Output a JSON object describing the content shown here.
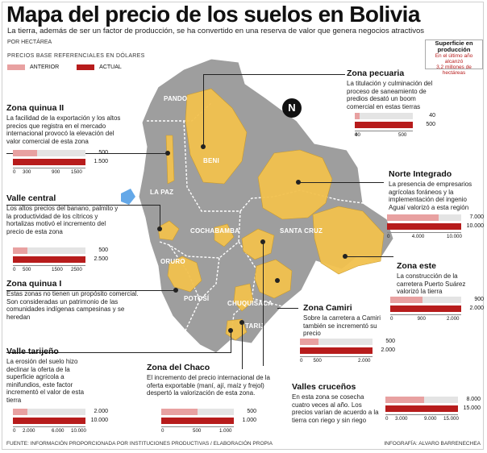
{
  "header": {
    "title": "Mapa del precio de los suelos en Bolivia",
    "subtitle": "La tierra, además de ser un factor de producción, se ha convertido en una reserva de valor que genera negocios atractivos",
    "unit": "POR HECTÁREA",
    "prices_note": "PRECIOS  BASE  REFERENCIALES EN DÓLARES"
  },
  "legend": {
    "anterior": "ANTERIOR",
    "actual": "ACTUAL"
  },
  "colors": {
    "anterior": "#e8a1a1",
    "actual": "#b71c1c",
    "zone": "#f2c14e",
    "land": "#9e9e9e",
    "bg_bar": "#e4e4e4"
  },
  "surface": {
    "title1": "Superficie en",
    "title2": "producción",
    "line1": "En el último año alcanzó",
    "line2": "3,2 millones de hectáreas"
  },
  "map_labels": {
    "pando": "PANDO",
    "beni": "BENI",
    "la_paz": "LA PAZ",
    "cochabamba": "COCHABAMBA",
    "santa_cruz": "SANTA CRUZ",
    "oruro": "ORURO",
    "potosi": "POTOSÍ",
    "chuquisaca": "CHUQUISACA",
    "tarija": "TARIJA",
    "compass": "N"
  },
  "footer": {
    "source": "FUENTE: INFORMACIÓN PROPORCIONADA POR INSTITUCIONES PRODUCTIVAS / ELABORACIÓN PROPIA",
    "credit": "INFOGRAFÍA: ALVARO BARRENECHEA"
  },
  "chart_data": [
    {
      "type": "bar",
      "name": "Zona quinua II",
      "description": "La facilidad de la exportación y los altos precios que registra en el mercado internacional provocó la elevación del valor comercial de esta zona",
      "series": [
        {
          "name": "Anterior",
          "value": 500
        },
        {
          "name": "Actual",
          "value": 1500
        }
      ],
      "ticks": [
        "0",
        "300",
        "900",
        "1500"
      ],
      "xlim": [
        0,
        1500
      ]
    },
    {
      "type": "bar",
      "name": "Valle central",
      "description": "Los altos precios del banano, palmito y la productividad de los cítricos y hortalizas motivó el incremento del precio de esta zona",
      "series": [
        {
          "name": "Anterior",
          "value": 500
        },
        {
          "name": "Actual",
          "value": 2500
        }
      ],
      "ticks": [
        "0",
        "500",
        "1500",
        "2500"
      ],
      "xlim": [
        0,
        2500
      ]
    },
    {
      "type": "bar",
      "name": "Zona quinua I",
      "description": "Estas zonas no tienen un propósito comercial. Son consideradas un patrimonio de las comunidades indígenas campesinas y se heredan",
      "series": [],
      "ticks": [],
      "xlim": null
    },
    {
      "type": "bar",
      "name": "Valle tarijeño",
      "description": "La erosión del suelo hizo declinar la oferta de la superficie agrícola a minifundios, este factor incrementó el valor de esta tierra",
      "series": [
        {
          "name": "Anterior",
          "value": 2000
        },
        {
          "name": "Actual",
          "value": 10000
        }
      ],
      "ticks": [
        "0",
        "2.000",
        "6.000",
        "10.000"
      ],
      "xlim": [
        0,
        10000
      ]
    },
    {
      "type": "bar",
      "name": "Zona del Chaco",
      "description": "El incremento del precio internacional de la oferta exportable (maní, ají, maíz y frejol) despertó la valorización de esta zona.",
      "series": [
        {
          "name": "Anterior",
          "value": 500
        },
        {
          "name": "Actual",
          "value": 1000
        }
      ],
      "ticks": [
        "0",
        "500",
        "1.000"
      ],
      "xlim": [
        0,
        1000
      ]
    },
    {
      "type": "bar",
      "name": "Zona pecuaria",
      "description": "La titulación y culminación del proceso de saneamiento de predios desató un boom comercial en estas tierras",
      "series": [
        {
          "name": "Anterior",
          "value": 40
        },
        {
          "name": "Actual",
          "value": 500
        }
      ],
      "ticks": [
        "0",
        "40",
        "500"
      ],
      "xlim": [
        0,
        500
      ]
    },
    {
      "type": "bar",
      "name": "Norte Integrado",
      "description": "La presencia de empresarios agrícolas foráneos y la implementación del ingenio Aguaí valorizó a esta región",
      "series": [
        {
          "name": "Anterior",
          "value": 7000
        },
        {
          "name": "Actual",
          "value": 10000
        }
      ],
      "ticks": [
        "0",
        "4.000",
        "10.000"
      ],
      "xlim": [
        0,
        10000
      ]
    },
    {
      "type": "bar",
      "name": "Zona este",
      "description": "La construcción de la carretera Puerto Suárez valorizó la tierra",
      "series": [
        {
          "name": "Anterior",
          "value": 900
        },
        {
          "name": "Actual",
          "value": 2000
        }
      ],
      "ticks": [
        "0",
        "900",
        "2.000"
      ],
      "xlim": [
        0,
        2000
      ]
    },
    {
      "type": "bar",
      "name": "Zona Camiri",
      "description": "Sobre la carretera a Camiri también se incrementó su precio",
      "series": [
        {
          "name": "Anterior",
          "value": 500
        },
        {
          "name": "Actual",
          "value": 2000
        }
      ],
      "ticks": [
        "0",
        "500",
        "2.000"
      ],
      "xlim": [
        0,
        2000
      ]
    },
    {
      "type": "bar",
      "name": "Valles cruceños",
      "description": "En esta zona se cosecha cuatro veces al año. Los precios varían de acuerdo a la tierra con riego y sin riego",
      "series": [
        {
          "name": "Anterior",
          "value": 8000
        },
        {
          "name": "Actual",
          "value": 15000
        }
      ],
      "ticks": [
        "0",
        "3.000",
        "9.000",
        "15.000"
      ],
      "xlim": [
        0,
        15000
      ]
    }
  ]
}
